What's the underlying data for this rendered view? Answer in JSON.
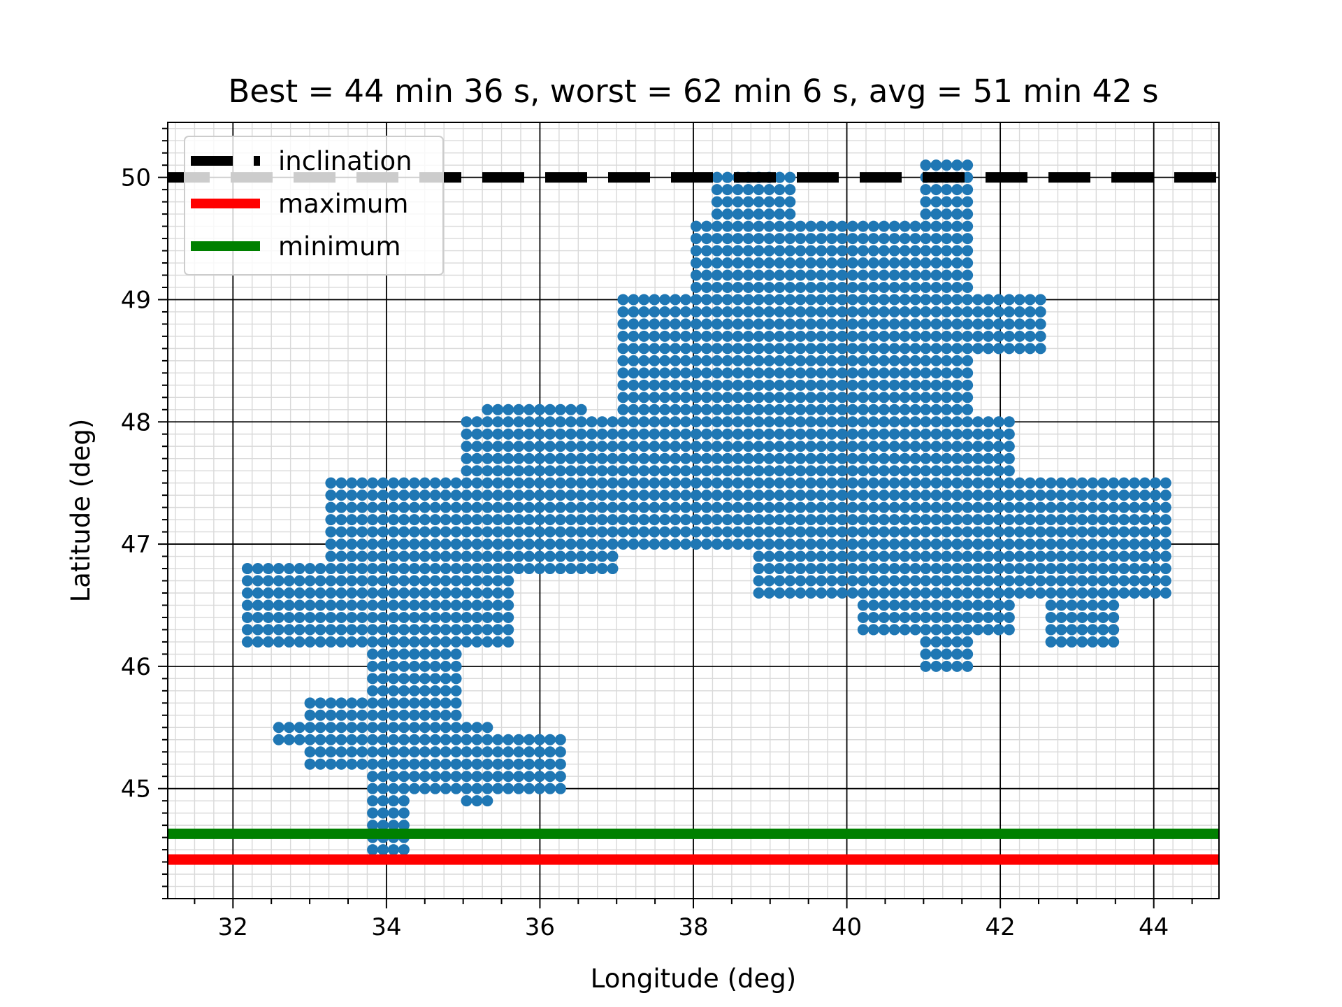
{
  "chart_data": {
    "type": "scatter",
    "title": "Best = 44 min 36 s, worst = 62 min 6 s, avg = 51 min 42 s",
    "xlabel": "Longitude (deg)",
    "ylabel": "Latitude (deg)",
    "xlim": [
      31.15,
      44.85
    ],
    "ylim": [
      44.1,
      50.45
    ],
    "x_ticks": [
      32,
      34,
      36,
      38,
      40,
      42,
      44
    ],
    "x_tick_labels": [
      "32",
      "34",
      "36",
      "38",
      "40",
      "42",
      "44"
    ],
    "y_ticks": [
      45,
      46,
      47,
      48,
      49,
      50
    ],
    "y_tick_labels": [
      "45",
      "46",
      "47",
      "48",
      "49",
      "50"
    ],
    "grid": "on (major and minor)",
    "legend_position": "upper left",
    "colors": {
      "points": "#1f77b4",
      "inclination": "#000000",
      "maximum": "#ff0000",
      "minimum": "#008000"
    },
    "lines": [
      {
        "name": "inclination",
        "y": 50.0,
        "style": "dashed",
        "color": "#000000"
      },
      {
        "name": "maximum",
        "y": 44.42,
        "style": "solid",
        "color": "#ff0000"
      },
      {
        "name": "minimum",
        "y": 44.63,
        "style": "solid",
        "color": "#008000"
      }
    ],
    "points_grid_spacing_deg": {
      "dx": 0.136,
      "dy": 0.1
    },
    "points_grid_origin": {
      "x": 31.78,
      "y": 44.5
    },
    "point_regions": [
      {
        "x": [
          35.0,
          42.2
        ],
        "y": [
          47.0,
          48.0
        ]
      },
      {
        "x": [
          37.0,
          41.7
        ],
        "y": [
          48.0,
          49.0
        ]
      },
      {
        "x": [
          38.0,
          41.6
        ],
        "y": [
          49.0,
          49.6
        ]
      },
      {
        "x": [
          38.2,
          39.3
        ],
        "y": [
          49.6,
          50.0
        ]
      },
      {
        "x": [
          40.9,
          41.6
        ],
        "y": [
          49.6,
          50.1
        ]
      },
      {
        "x": [
          41.7,
          42.6
        ],
        "y": [
          48.6,
          49.0
        ]
      },
      {
        "x": [
          33.2,
          37.0
        ],
        "y": [
          46.8,
          47.5
        ]
      },
      {
        "x": [
          33.0,
          35.6
        ],
        "y": [
          46.2,
          46.8
        ]
      },
      {
        "x": [
          32.1,
          33.5
        ],
        "y": [
          46.2,
          46.8
        ]
      },
      {
        "x": [
          35.3,
          36.6
        ],
        "y": [
          47.9,
          48.1
        ]
      },
      {
        "x": [
          33.7,
          35.0
        ],
        "y": [
          45.0,
          46.2
        ]
      },
      {
        "x": [
          33.0,
          34.2
        ],
        "y": [
          45.2,
          45.7
        ]
      },
      {
        "x": [
          32.5,
          33.0
        ],
        "y": [
          45.4,
          45.5
        ]
      },
      {
        "x": [
          35.0,
          35.4
        ],
        "y": [
          44.9,
          45.5
        ]
      },
      {
        "x": [
          35.4,
          36.4
        ],
        "y": [
          45.0,
          45.4
        ]
      },
      {
        "x": [
          33.7,
          34.3
        ],
        "y": [
          44.5,
          45.0
        ]
      },
      {
        "x": [
          40.1,
          42.2
        ],
        "y": [
          46.3,
          47.0
        ]
      },
      {
        "x": [
          40.9,
          41.7
        ],
        "y": [
          46.0,
          46.3
        ]
      },
      {
        "x": [
          42.2,
          44.2
        ],
        "y": [
          46.6,
          47.5
        ]
      },
      {
        "x": [
          42.6,
          43.6
        ],
        "y": [
          46.2,
          46.6
        ]
      },
      {
        "x": [
          39.0,
          40.1
        ],
        "y": [
          46.6,
          47.0
        ]
      },
      {
        "x": [
          38.8,
          39.2
        ],
        "y": [
          46.6,
          46.9
        ]
      }
    ]
  }
}
